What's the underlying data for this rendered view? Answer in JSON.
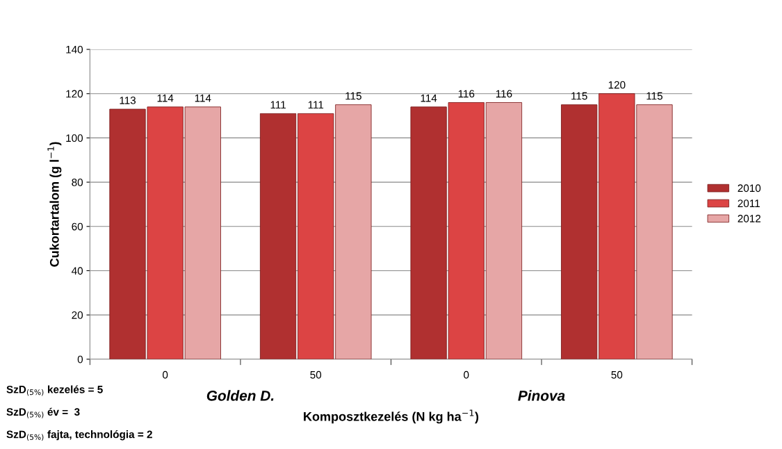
{
  "chart_data": {
    "type": "bar",
    "xlabel": "Komposztkezelés (N kg ha$^{−1}$)",
    "ylabel": "Cukortartalom (g l$^{−1}$)",
    "categories": [
      "0",
      "50",
      "0",
      "50"
    ],
    "series": [
      {
        "name": "2010",
        "color": "#b03030",
        "values": [
          113,
          111,
          114,
          115
        ]
      },
      {
        "name": "2011",
        "color": "#dc4444",
        "values": [
          114,
          111,
          116,
          120
        ]
      },
      {
        "name": "2012",
        "color": "#e6a6a6",
        "values": [
          114,
          115,
          116,
          115
        ]
      }
    ],
    "ylim": [
      0,
      140
    ],
    "yticks": [
      0,
      20,
      40,
      60,
      80,
      100,
      120,
      140
    ],
    "grid": "y",
    "legend": "right",
    "data_labels": true,
    "annotations": [
      "Golden D.",
      "Pinova",
      "SzD$_{(5%)}$ kezelés = 5",
      "SzD$_{(5%)}$ év =  3",
      "SzD$_{(5%)}$ fajta, technológia = 2"
    ]
  }
}
